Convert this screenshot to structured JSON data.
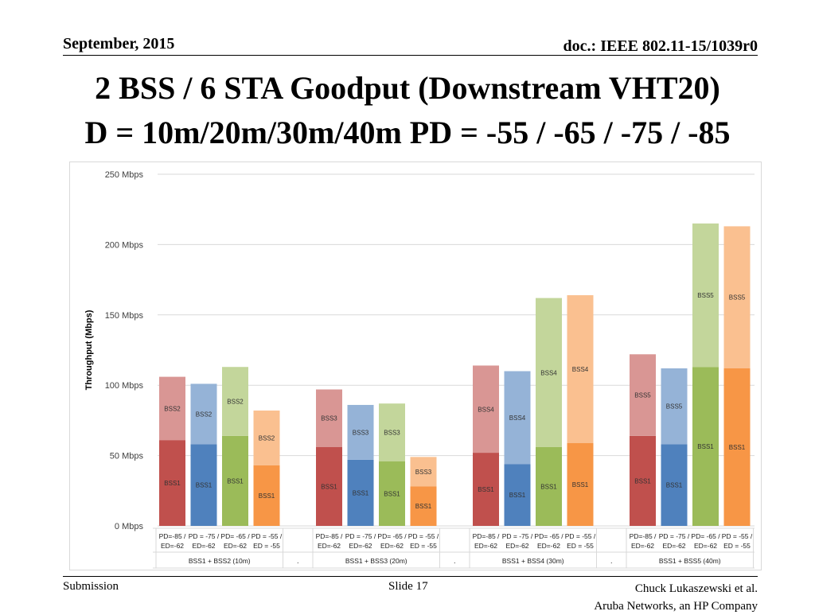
{
  "header": {
    "date": "September, 2015",
    "doc": "doc.: IEEE 802.11-15/1039r0"
  },
  "title": {
    "line1": "2 BSS / 6 STA Goodput (Downstream VHT20)",
    "line2": "D = 10m/20m/30m/40m  PD = -55 / -65 / -75 / -85"
  },
  "footer": {
    "left": "Submission",
    "center": "Slide 17",
    "right_line1": "Chuck Lukaszewski et al.",
    "right_line2": "Aruba Networks, an HP Company"
  },
  "chart_data": {
    "type": "bar",
    "stacked": true,
    "ylabel": "Throughput (Mbps)",
    "ylim": [
      0,
      250
    ],
    "yticks": [
      0,
      50,
      100,
      150,
      200,
      250
    ],
    "ytick_labels": [
      "0 Mbps",
      "50 Mbps",
      "100 Mbps",
      "150 Mbps",
      "200 Mbps",
      "250 Mbps"
    ],
    "grid": true,
    "separator_label": ".",
    "bar_colors": [
      {
        "base": "#c0504d",
        "top": "#d99694"
      },
      {
        "base": "#4f81bd",
        "top": "#95b3d7"
      },
      {
        "base": "#9bbb59",
        "top": "#c3d69b"
      },
      {
        "base": "#f79646",
        "top": "#fac090"
      }
    ],
    "groups": [
      {
        "label": "BSS1 + BSS2 (10m)",
        "bars": [
          {
            "pd": "PD=-85 /",
            "ed": "ED=-62",
            "base_label": "BSS1",
            "base": 61,
            "top_label": "BSS2",
            "top": 45
          },
          {
            "pd": "PD = -75 /",
            "ed": "ED=-62",
            "base_label": "BSS1",
            "base": 58,
            "top_label": "BSS2",
            "top": 43
          },
          {
            "pd": "PD= -65 /",
            "ed": "ED=-62",
            "base_label": "BSS1",
            "base": 64,
            "top_label": "BSS2",
            "top": 49
          },
          {
            "pd": "PD = -55 /",
            "ed": "ED = -55",
            "base_label": "BSS1",
            "base": 43,
            "top_label": "BSS2",
            "top": 39
          }
        ]
      },
      {
        "label": "BSS1 + BSS3 (20m)",
        "bars": [
          {
            "pd": "PD=-85 /",
            "ed": "ED=-62",
            "base_label": "BSS1",
            "base": 56,
            "top_label": "BSS3",
            "top": 41
          },
          {
            "pd": "PD = -75 /",
            "ed": "ED=-62",
            "base_label": "BSS1",
            "base": 47,
            "top_label": "BSS3",
            "top": 39
          },
          {
            "pd": "PD= -65 /",
            "ed": "ED=-62",
            "base_label": "BSS1",
            "base": 46,
            "top_label": "BSS3",
            "top": 41
          },
          {
            "pd": "PD = -55 /",
            "ed": "ED = -55",
            "base_label": "BSS1",
            "base": 28,
            "top_label": "BSS3",
            "top": 21
          }
        ]
      },
      {
        "label": "BSS1 + BSS4 (30m)",
        "bars": [
          {
            "pd": "PD=-85 /",
            "ed": "ED=-62",
            "base_label": "BSS1",
            "base": 52,
            "top_label": "BSS4",
            "top": 62
          },
          {
            "pd": "PD = -75 /",
            "ed": "ED=-62",
            "base_label": "BSS1",
            "base": 44,
            "top_label": "BSS4",
            "top": 66
          },
          {
            "pd": "PD= -65 /",
            "ed": "ED=-62",
            "base_label": "BSS1",
            "base": 56,
            "top_label": "BSS4",
            "top": 106
          },
          {
            "pd": "PD = -55 /",
            "ed": "ED = -55",
            "base_label": "BSS1",
            "base": 59,
            "top_label": "BSS4",
            "top": 105
          }
        ]
      },
      {
        "label": "BSS1 + BSS5 (40m)",
        "bars": [
          {
            "pd": "PD=-85 /",
            "ed": "ED=-62",
            "base_label": "BSS1",
            "base": 64,
            "top_label": "BSS5",
            "top": 58
          },
          {
            "pd": "PD = -75 /",
            "ed": "ED=-62",
            "base_label": "BSS1",
            "base": 58,
            "top_label": "BSS5",
            "top": 54
          },
          {
            "pd": "PD= -65 /",
            "ed": "ED=-62",
            "base_label": "BSS1",
            "base": 113,
            "top_label": "BSS5",
            "top": 102
          },
          {
            "pd": "PD = -55 /",
            "ed": "ED = -55",
            "base_label": "BSS1",
            "base": 112,
            "top_label": "BSS5",
            "top": 101
          }
        ]
      }
    ]
  }
}
